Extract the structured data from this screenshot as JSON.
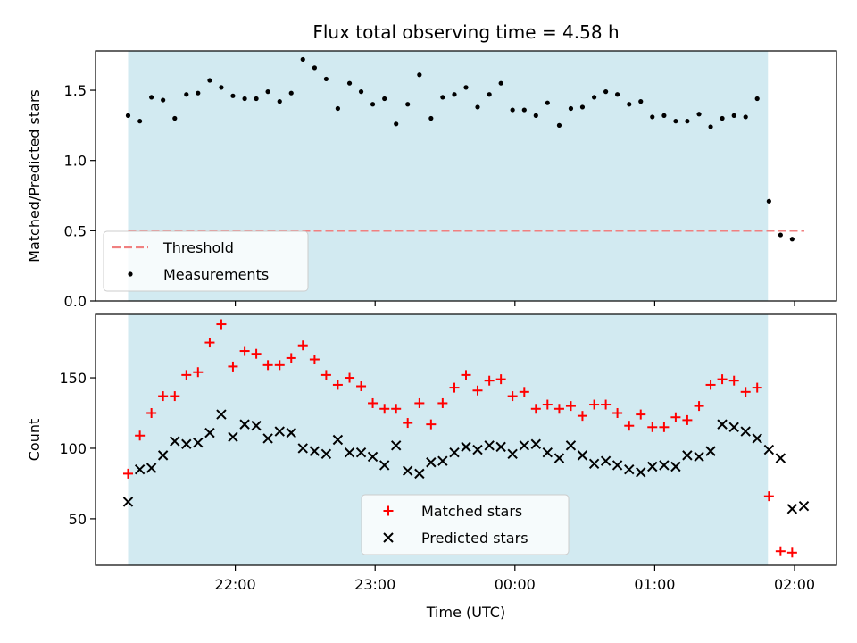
{
  "chart_data": {
    "type": "scatter",
    "title": "Flux total observing time = 4.58 h",
    "xlabel": "Time (UTC)",
    "x_ticks": [
      {
        "label": "22:00",
        "hours": 22.0
      },
      {
        "label": "23:00",
        "hours": 23.0
      },
      {
        "label": "00:00",
        "hours": 24.0
      },
      {
        "label": "01:00",
        "hours": 25.0
      },
      {
        "label": "02:00",
        "hours": 26.0
      }
    ],
    "xlim_hours": [
      21.0,
      26.3
    ],
    "shaded_interval_hours": [
      21.233,
      25.81
    ],
    "shade_color": "#add8e6",
    "panels": [
      {
        "ylabel": "Matched/Predicted stars",
        "ylim": [
          0,
          1.78
        ],
        "y_ticks": [
          0.0,
          0.5,
          1.0,
          1.5
        ],
        "y_tick_labels": [
          "0.0",
          "0.5",
          "1.0",
          "1.5"
        ],
        "legend": {
          "position": "lower left",
          "entries": [
            "Threshold",
            "Measurements"
          ]
        },
        "threshold": {
          "name": "Threshold",
          "value": 0.5,
          "color": "#f08080",
          "x_range_hours": [
            21.233,
            26.07
          ]
        },
        "series": [
          {
            "name": "Measurements",
            "marker": "dot",
            "color": "#000000",
            "x_hours": [
              21.233,
              21.317,
              21.4,
              21.483,
              21.567,
              21.65,
              21.733,
              21.817,
              21.9,
              21.983,
              22.067,
              22.15,
              22.233,
              22.317,
              22.4,
              22.483,
              22.567,
              22.65,
              22.733,
              22.817,
              22.9,
              22.983,
              23.067,
              23.15,
              23.233,
              23.317,
              23.4,
              23.483,
              23.567,
              23.65,
              23.733,
              23.817,
              23.9,
              23.983,
              24.067,
              24.15,
              24.233,
              24.317,
              24.4,
              24.483,
              24.567,
              24.65,
              24.733,
              24.817,
              24.9,
              24.983,
              25.067,
              25.15,
              25.233,
              25.317,
              25.4,
              25.483,
              25.567,
              25.65,
              25.733,
              25.817,
              25.9,
              25.983,
              26.067
            ],
            "y": [
              1.32,
              1.28,
              1.45,
              1.43,
              1.3,
              1.47,
              1.48,
              1.57,
              1.52,
              1.46,
              1.44,
              1.44,
              1.49,
              1.42,
              1.48,
              1.72,
              1.66,
              1.58,
              1.37,
              1.55,
              1.49,
              1.4,
              1.44,
              1.26,
              1.4,
              1.61,
              1.3,
              1.45,
              1.47,
              1.52,
              1.38,
              1.47,
              1.55,
              1.36,
              1.36,
              1.32,
              1.41,
              1.25,
              1.37,
              1.38,
              1.45,
              1.49,
              1.47,
              1.4,
              1.42,
              1.31,
              1.32,
              1.28,
              1.28,
              1.33,
              1.24,
              1.3,
              1.32,
              1.31,
              1.44,
              0.71,
              0.47,
              0.44,
              null
            ]
          }
        ]
      },
      {
        "ylabel": "Count",
        "ylim": [
          17,
          195
        ],
        "y_ticks": [
          50,
          100,
          150
        ],
        "y_tick_labels": [
          "50",
          "100",
          "150"
        ],
        "legend": {
          "position": "lower center",
          "entries": [
            "Matched stars",
            "Predicted stars"
          ]
        },
        "series": [
          {
            "name": "Matched stars",
            "marker": "plus",
            "color": "#ff0000",
            "x_hours": [
              21.233,
              21.317,
              21.4,
              21.483,
              21.567,
              21.65,
              21.733,
              21.817,
              21.9,
              21.983,
              22.067,
              22.15,
              22.233,
              22.317,
              22.4,
              22.483,
              22.567,
              22.65,
              22.733,
              22.817,
              22.9,
              22.983,
              23.067,
              23.15,
              23.233,
              23.317,
              23.4,
              23.483,
              23.567,
              23.65,
              23.733,
              23.817,
              23.9,
              23.983,
              24.067,
              24.15,
              24.233,
              24.317,
              24.4,
              24.483,
              24.567,
              24.65,
              24.733,
              24.817,
              24.9,
              24.983,
              25.067,
              25.15,
              25.233,
              25.317,
              25.4,
              25.483,
              25.567,
              25.65,
              25.733,
              25.817,
              25.9,
              25.983,
              26.067
            ],
            "y": [
              82,
              109,
              125,
              137,
              137,
              152,
              154,
              175,
              188,
              158,
              169,
              167,
              159,
              159,
              164,
              173,
              163,
              152,
              145,
              150,
              144,
              132,
              128,
              128,
              118,
              132,
              117,
              132,
              143,
              152,
              141,
              148,
              149,
              137,
              140,
              128,
              131,
              128,
              130,
              123,
              131,
              131,
              125,
              116,
              124,
              115,
              115,
              122,
              120,
              130,
              145,
              149,
              148,
              140,
              143,
              66,
              27,
              26,
              null
            ]
          },
          {
            "name": "Predicted stars",
            "marker": "x",
            "color": "#000000",
            "x_hours": [
              21.233,
              21.317,
              21.4,
              21.483,
              21.567,
              21.65,
              21.733,
              21.817,
              21.9,
              21.983,
              22.067,
              22.15,
              22.233,
              22.317,
              22.4,
              22.483,
              22.567,
              22.65,
              22.733,
              22.817,
              22.9,
              22.983,
              23.067,
              23.15,
              23.233,
              23.317,
              23.4,
              23.483,
              23.567,
              23.65,
              23.733,
              23.817,
              23.9,
              23.983,
              24.067,
              24.15,
              24.233,
              24.317,
              24.4,
              24.483,
              24.567,
              24.65,
              24.733,
              24.817,
              24.9,
              24.983,
              25.067,
              25.15,
              25.233,
              25.317,
              25.4,
              25.483,
              25.567,
              25.65,
              25.733,
              25.817,
              25.9,
              25.983,
              26.067
            ],
            "y": [
              62,
              85,
              86,
              95,
              105,
              103,
              104,
              111,
              124,
              108,
              117,
              116,
              107,
              112,
              111,
              100,
              98,
              96,
              106,
              97,
              97,
              94,
              88,
              102,
              84,
              82,
              90,
              91,
              97,
              101,
              99,
              102,
              101,
              96,
              102,
              103,
              97,
              93,
              102,
              95,
              89,
              91,
              88,
              85,
              83,
              87,
              88,
              87,
              95,
              94,
              98,
              117,
              115,
              112,
              107,
              99,
              93,
              57,
              59
            ]
          }
        ]
      }
    ]
  }
}
